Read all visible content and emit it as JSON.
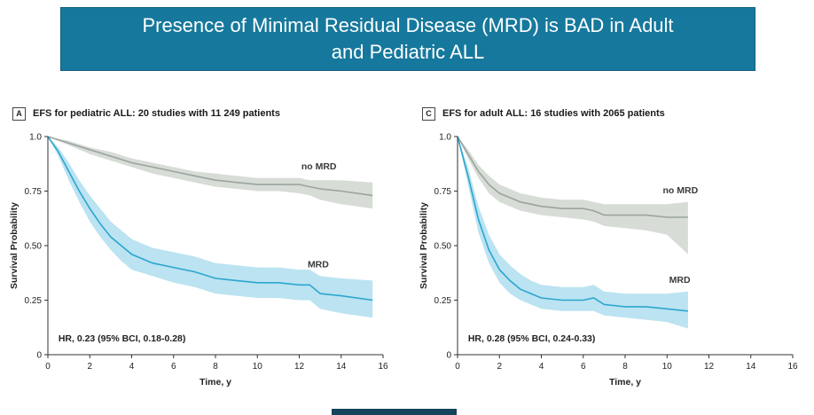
{
  "page": {
    "title_line1": "Presence of Minimal Residual Disease  (MRD) is BAD in Adult",
    "title_line2": "and Pediatric ALL",
    "banner_color": "#16789c",
    "footer_color": "#14455c"
  },
  "chart_data": [
    {
      "type": "line",
      "panel_label": "A",
      "title": "EFS for pediatric ALL: 20 studies with 11 249 patients",
      "xlabel": "Time, y",
      "ylabel": "Survival Probability",
      "xlim": [
        0,
        16
      ],
      "ylim": [
        0,
        1.0
      ],
      "xticks": [
        0,
        2,
        4,
        6,
        8,
        10,
        12,
        14,
        16
      ],
      "yticks": [
        0,
        0.25,
        0.5,
        0.75,
        1.0
      ],
      "ytick_labels": [
        "0",
        "0.25",
        "0.50",
        "0.75",
        "1.0"
      ],
      "annotation": "HR, 0.23 (95% BCI, 0.18-0.28)",
      "annotation_x": 0.5,
      "annotation_y": 0.06,
      "legend_position": "inline-right",
      "grid": false,
      "series": [
        {
          "name": "no MRD",
          "color": "#9aa49d",
          "band_color": "#cdd3cc",
          "label_x": 12.1,
          "label_y": 0.85,
          "x": [
            0,
            1,
            2,
            3,
            4,
            5,
            6,
            7,
            8,
            9,
            10,
            11,
            12,
            12.5,
            13,
            14,
            15.5
          ],
          "y": [
            1.0,
            0.97,
            0.94,
            0.91,
            0.88,
            0.86,
            0.84,
            0.82,
            0.8,
            0.79,
            0.78,
            0.78,
            0.78,
            0.77,
            0.76,
            0.75,
            0.73
          ],
          "upper": [
            1.0,
            0.98,
            0.95,
            0.93,
            0.9,
            0.88,
            0.86,
            0.84,
            0.83,
            0.82,
            0.81,
            0.81,
            0.81,
            0.8,
            0.8,
            0.8,
            0.79
          ],
          "lower": [
            1.0,
            0.96,
            0.92,
            0.89,
            0.86,
            0.83,
            0.81,
            0.79,
            0.77,
            0.76,
            0.75,
            0.75,
            0.74,
            0.73,
            0.71,
            0.69,
            0.67
          ]
        },
        {
          "name": "MRD",
          "color": "#2ba6cf",
          "band_color": "#aadcee",
          "label_x": 12.4,
          "label_y": 0.4,
          "x": [
            0,
            0.5,
            1,
            1.5,
            2,
            2.5,
            3,
            3.5,
            4,
            5,
            6,
            7,
            8,
            9,
            10,
            11,
            12,
            12.5,
            13,
            14,
            15.5
          ],
          "y": [
            1.0,
            0.93,
            0.84,
            0.75,
            0.67,
            0.6,
            0.54,
            0.5,
            0.46,
            0.42,
            0.4,
            0.38,
            0.35,
            0.34,
            0.33,
            0.33,
            0.32,
            0.32,
            0.28,
            0.27,
            0.25
          ],
          "upper": [
            1.0,
            0.95,
            0.88,
            0.8,
            0.73,
            0.67,
            0.61,
            0.57,
            0.53,
            0.49,
            0.47,
            0.45,
            0.42,
            0.41,
            0.4,
            0.4,
            0.39,
            0.39,
            0.36,
            0.35,
            0.34
          ],
          "lower": [
            1.0,
            0.91,
            0.8,
            0.7,
            0.61,
            0.54,
            0.48,
            0.43,
            0.39,
            0.36,
            0.33,
            0.31,
            0.28,
            0.27,
            0.26,
            0.26,
            0.25,
            0.25,
            0.21,
            0.19,
            0.17
          ]
        }
      ]
    },
    {
      "type": "line",
      "panel_label": "C",
      "title": "EFS for adult ALL: 16 studies with 2065 patients",
      "xlabel": "Time, y",
      "ylabel": "Survival Probability",
      "xlim": [
        0,
        16
      ],
      "ylim": [
        0,
        1.0
      ],
      "xticks": [
        0,
        2,
        4,
        6,
        8,
        10,
        12,
        14,
        16
      ],
      "yticks": [
        0,
        0.25,
        0.5,
        0.75,
        1.0
      ],
      "ytick_labels": [
        "0",
        "0.25",
        "0.50",
        "0.75",
        "1.0"
      ],
      "annotation": "HR, 0.28 (95% BCI, 0.24-0.33)",
      "annotation_x": 0.5,
      "annotation_y": 0.06,
      "legend_position": "inline-right",
      "grid": false,
      "series": [
        {
          "name": "no MRD",
          "color": "#9aa49d",
          "band_color": "#cdd3cc",
          "label_x": 9.8,
          "label_y": 0.74,
          "x": [
            0,
            0.5,
            1,
            1.5,
            2,
            2.5,
            3,
            4,
            5,
            6,
            6.5,
            7,
            8,
            9,
            10,
            11
          ],
          "y": [
            1.0,
            0.92,
            0.84,
            0.78,
            0.74,
            0.72,
            0.7,
            0.68,
            0.67,
            0.67,
            0.66,
            0.64,
            0.64,
            0.64,
            0.63,
            0.63
          ],
          "upper": [
            1.0,
            0.94,
            0.87,
            0.82,
            0.78,
            0.76,
            0.74,
            0.72,
            0.71,
            0.71,
            0.7,
            0.69,
            0.69,
            0.69,
            0.69,
            0.7
          ],
          "lower": [
            1.0,
            0.9,
            0.81,
            0.74,
            0.7,
            0.68,
            0.66,
            0.64,
            0.63,
            0.62,
            0.61,
            0.59,
            0.58,
            0.57,
            0.55,
            0.46
          ]
        },
        {
          "name": "MRD",
          "color": "#2ba6cf",
          "band_color": "#aadcee",
          "label_x": 10.1,
          "label_y": 0.33,
          "x": [
            0,
            0.5,
            1,
            1.5,
            2,
            2.5,
            3,
            3.5,
            4,
            5,
            6,
            6.5,
            7,
            8,
            9,
            10,
            11
          ],
          "y": [
            1.0,
            0.82,
            0.62,
            0.48,
            0.39,
            0.34,
            0.3,
            0.28,
            0.26,
            0.25,
            0.25,
            0.26,
            0.23,
            0.22,
            0.22,
            0.21,
            0.2
          ],
          "upper": [
            1.0,
            0.86,
            0.68,
            0.55,
            0.46,
            0.41,
            0.37,
            0.34,
            0.32,
            0.31,
            0.31,
            0.32,
            0.29,
            0.28,
            0.28,
            0.28,
            0.29
          ],
          "lower": [
            1.0,
            0.78,
            0.56,
            0.42,
            0.33,
            0.28,
            0.25,
            0.23,
            0.21,
            0.2,
            0.2,
            0.2,
            0.18,
            0.17,
            0.16,
            0.15,
            0.12
          ]
        }
      ]
    }
  ]
}
